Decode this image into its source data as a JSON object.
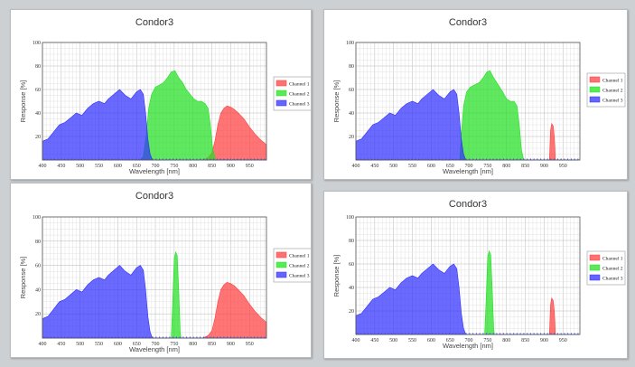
{
  "chart_data": [
    {
      "type": "area",
      "title": "Condor3",
      "xlabel": "Wavelength [nm]",
      "ylabel": "Response [%]",
      "xlim": [
        400,
        995
      ],
      "ylim": [
        0,
        100
      ],
      "x_ticks": [
        400,
        450,
        500,
        550,
        600,
        650,
        700,
        750,
        800,
        850,
        900,
        950
      ],
      "y_ticks": [
        20,
        40,
        60,
        80,
        100
      ],
      "legend_position": "right",
      "series": [
        {
          "name": "Channel 1",
          "color": "#ff4040",
          "points": [
            [
              400,
              0
            ],
            [
              825,
              0
            ],
            [
              840,
              2
            ],
            [
              850,
              6
            ],
            [
              858,
              16
            ],
            [
              866,
              30
            ],
            [
              874,
              40
            ],
            [
              882,
              44
            ],
            [
              890,
              46
            ],
            [
              900,
              45
            ],
            [
              910,
              43
            ],
            [
              920,
              40
            ],
            [
              935,
              35
            ],
            [
              950,
              28
            ],
            [
              965,
              22
            ],
            [
              980,
              17
            ],
            [
              995,
              13
            ]
          ]
        },
        {
          "name": "Channel 2",
          "color": "#22e122",
          "points": [
            [
              400,
              0
            ],
            [
              660,
              0
            ],
            [
              668,
              3
            ],
            [
              676,
              22
            ],
            [
              682,
              44
            ],
            [
              690,
              56
            ],
            [
              700,
              62
            ],
            [
              712,
              64
            ],
            [
              722,
              66
            ],
            [
              732,
              70
            ],
            [
              742,
              75
            ],
            [
              752,
              76
            ],
            [
              762,
              70
            ],
            [
              772,
              66
            ],
            [
              782,
              60
            ],
            [
              792,
              56
            ],
            [
              802,
              52
            ],
            [
              812,
              50
            ],
            [
              822,
              50
            ],
            [
              832,
              48
            ],
            [
              840,
              44
            ],
            [
              846,
              30
            ],
            [
              852,
              10
            ],
            [
              858,
              2
            ],
            [
              862,
              0
            ],
            [
              995,
              0
            ]
          ]
        },
        {
          "name": "Channel 3",
          "color": "#3030ff",
          "points": [
            [
              400,
              16
            ],
            [
              415,
              18
            ],
            [
              430,
              24
            ],
            [
              445,
              30
            ],
            [
              460,
              32
            ],
            [
              475,
              36
            ],
            [
              490,
              40
            ],
            [
              505,
              38
            ],
            [
              520,
              44
            ],
            [
              535,
              48
            ],
            [
              550,
              50
            ],
            [
              565,
              48
            ],
            [
              575,
              52
            ],
            [
              590,
              56
            ],
            [
              605,
              60
            ],
            [
              620,
              55
            ],
            [
              635,
              52
            ],
            [
              650,
              58
            ],
            [
              660,
              60
            ],
            [
              668,
              56
            ],
            [
              674,
              40
            ],
            [
              680,
              18
            ],
            [
              686,
              5
            ],
            [
              692,
              0
            ],
            [
              995,
              0
            ]
          ]
        }
      ]
    },
    {
      "type": "area",
      "title": "Condor3",
      "xlabel": "Wavelength [nm]",
      "ylabel": "Response [%]",
      "xlim": [
        400,
        995
      ],
      "ylim": [
        0,
        100
      ],
      "x_ticks": [
        400,
        450,
        500,
        550,
        600,
        650,
        700,
        750,
        800,
        850,
        900,
        950
      ],
      "y_ticks": [
        20,
        40,
        60,
        80,
        100
      ],
      "legend_position": "right",
      "series": [
        {
          "name": "Channel 1",
          "color": "#ff4040",
          "points": [
            [
              400,
              0
            ],
            [
              914,
              0
            ],
            [
              917,
              25
            ],
            [
              920,
              31
            ],
            [
              924,
              29
            ],
            [
              927,
              20
            ],
            [
              930,
              0
            ],
            [
              995,
              0
            ]
          ]
        },
        {
          "name": "Channel 2",
          "color": "#22e122",
          "points": [
            [
              400,
              0
            ],
            [
              676,
              0
            ],
            [
              680,
              22
            ],
            [
              686,
              46
            ],
            [
              694,
              58
            ],
            [
              704,
              62
            ],
            [
              716,
              64
            ],
            [
              728,
              66
            ],
            [
              738,
              70
            ],
            [
              748,
              75
            ],
            [
              756,
              76
            ],
            [
              766,
              70
            ],
            [
              778,
              64
            ],
            [
              790,
              58
            ],
            [
              800,
              52
            ],
            [
              810,
              50
            ],
            [
              820,
              50
            ],
            [
              828,
              46
            ],
            [
              834,
              30
            ],
            [
              840,
              8
            ],
            [
              846,
              0
            ],
            [
              995,
              0
            ]
          ]
        },
        {
          "name": "Channel 3",
          "color": "#3030ff",
          "points": [
            [
              400,
              16
            ],
            [
              415,
              18
            ],
            [
              430,
              24
            ],
            [
              445,
              30
            ],
            [
              460,
              32
            ],
            [
              475,
              36
            ],
            [
              490,
              40
            ],
            [
              505,
              38
            ],
            [
              520,
              44
            ],
            [
              535,
              48
            ],
            [
              550,
              50
            ],
            [
              565,
              48
            ],
            [
              575,
              52
            ],
            [
              590,
              56
            ],
            [
              605,
              60
            ],
            [
              620,
              55
            ],
            [
              635,
              52
            ],
            [
              650,
              58
            ],
            [
              660,
              60
            ],
            [
              668,
              56
            ],
            [
              674,
              40
            ],
            [
              680,
              18
            ],
            [
              686,
              5
            ],
            [
              692,
              0
            ],
            [
              995,
              0
            ]
          ]
        }
      ]
    },
    {
      "type": "area",
      "title": "Condor3",
      "xlabel": "Wavelength [nm]",
      "ylabel": "Response [%]",
      "xlim": [
        400,
        995
      ],
      "ylim": [
        0,
        100
      ],
      "x_ticks": [
        400,
        450,
        500,
        550,
        600,
        650,
        700,
        750,
        800,
        850,
        900,
        950
      ],
      "y_ticks": [
        20,
        40,
        60,
        80,
        100
      ],
      "legend_position": "right",
      "series": [
        {
          "name": "Channel 1",
          "color": "#ff4040",
          "points": [
            [
              400,
              0
            ],
            [
              825,
              0
            ],
            [
              840,
              2
            ],
            [
              850,
              6
            ],
            [
              858,
              16
            ],
            [
              866,
              30
            ],
            [
              874,
              40
            ],
            [
              882,
              44
            ],
            [
              890,
              46
            ],
            [
              900,
              45
            ],
            [
              910,
              43
            ],
            [
              920,
              40
            ],
            [
              935,
              35
            ],
            [
              950,
              28
            ],
            [
              965,
              22
            ],
            [
              980,
              17
            ],
            [
              995,
              13
            ]
          ]
        },
        {
          "name": "Channel 2",
          "color": "#22e122",
          "points": [
            [
              400,
              0
            ],
            [
              742,
              0
            ],
            [
              746,
              30
            ],
            [
              750,
              66
            ],
            [
              754,
              71
            ],
            [
              758,
              68
            ],
            [
              762,
              40
            ],
            [
              766,
              5
            ],
            [
              768,
              0
            ],
            [
              995,
              0
            ]
          ]
        },
        {
          "name": "Channel 3",
          "color": "#3030ff",
          "points": [
            [
              400,
              16
            ],
            [
              415,
              18
            ],
            [
              430,
              24
            ],
            [
              445,
              30
            ],
            [
              460,
              32
            ],
            [
              475,
              36
            ],
            [
              490,
              40
            ],
            [
              505,
              38
            ],
            [
              520,
              44
            ],
            [
              535,
              48
            ],
            [
              550,
              50
            ],
            [
              565,
              48
            ],
            [
              575,
              52
            ],
            [
              590,
              56
            ],
            [
              605,
              60
            ],
            [
              620,
              55
            ],
            [
              635,
              52
            ],
            [
              650,
              58
            ],
            [
              660,
              60
            ],
            [
              668,
              56
            ],
            [
              674,
              40
            ],
            [
              680,
              18
            ],
            [
              686,
              5
            ],
            [
              692,
              0
            ],
            [
              995,
              0
            ]
          ]
        }
      ]
    },
    {
      "type": "area",
      "title": "Condor3",
      "xlabel": "Wavelength [nm]",
      "ylabel": "Response [%]",
      "xlim": [
        400,
        995
      ],
      "ylim": [
        0,
        100
      ],
      "x_ticks": [
        400,
        450,
        500,
        550,
        600,
        650,
        700,
        750,
        800,
        850,
        900,
        950
      ],
      "y_ticks": [
        20,
        40,
        60,
        80,
        100
      ],
      "legend_position": "right",
      "series": [
        {
          "name": "Channel 1",
          "color": "#ff4040",
          "points": [
            [
              400,
              0
            ],
            [
              914,
              0
            ],
            [
              917,
              25
            ],
            [
              920,
              31
            ],
            [
              924,
              29
            ],
            [
              927,
              20
            ],
            [
              930,
              0
            ],
            [
              995,
              0
            ]
          ]
        },
        {
          "name": "Channel 2",
          "color": "#22e122",
          "points": [
            [
              400,
              0
            ],
            [
              742,
              0
            ],
            [
              746,
              30
            ],
            [
              750,
              66
            ],
            [
              754,
              71
            ],
            [
              758,
              68
            ],
            [
              762,
              40
            ],
            [
              766,
              5
            ],
            [
              768,
              0
            ],
            [
              995,
              0
            ]
          ]
        },
        {
          "name": "Channel 3",
          "color": "#3030ff",
          "points": [
            [
              400,
              16
            ],
            [
              415,
              18
            ],
            [
              430,
              24
            ],
            [
              445,
              30
            ],
            [
              460,
              32
            ],
            [
              475,
              36
            ],
            [
              490,
              40
            ],
            [
              505,
              38
            ],
            [
              520,
              44
            ],
            [
              535,
              48
            ],
            [
              550,
              50
            ],
            [
              565,
              48
            ],
            [
              575,
              52
            ],
            [
              590,
              56
            ],
            [
              605,
              60
            ],
            [
              620,
              55
            ],
            [
              635,
              52
            ],
            [
              650,
              58
            ],
            [
              660,
              60
            ],
            [
              668,
              56
            ],
            [
              674,
              40
            ],
            [
              680,
              18
            ],
            [
              686,
              5
            ],
            [
              692,
              0
            ],
            [
              995,
              0
            ]
          ]
        }
      ]
    }
  ]
}
